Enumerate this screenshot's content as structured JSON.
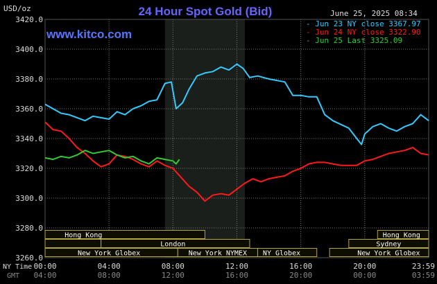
{
  "chart_data": {
    "type": "line",
    "title": "24 Hour Spot Gold (Bid)",
    "y_unit_label": "USD/oz",
    "timestamp": "June 25, 2025 08:34",
    "website": "www.kitco.com",
    "ylim": [
      3260,
      3420
    ],
    "y_ticks": [
      "3420.0",
      "3400.0",
      "3380.0",
      "3360.0",
      "3340.0",
      "3320.0",
      "3300.0",
      "3280.0",
      "3260.0"
    ],
    "y_tick_values": [
      3420,
      3400,
      3380,
      3360,
      3340,
      3320,
      3300,
      3280,
      3260
    ],
    "x_row_labels": {
      "ny": "NY Time",
      "gmt": "GMT"
    },
    "x_ticks": [
      {
        "h": 0,
        "ny": "00:00",
        "gmt": "04:00"
      },
      {
        "h": 4,
        "ny": "04:00",
        "gmt": "08:00"
      },
      {
        "h": 8,
        "ny": "08:00",
        "gmt": "12:00"
      },
      {
        "h": 12,
        "ny": "12:00",
        "gmt": "16:00"
      },
      {
        "h": 16,
        "ny": "16:00",
        "gmt": "20:00"
      },
      {
        "h": 20,
        "ny": "20:00",
        "gmt": "00:00"
      },
      {
        "h": 24,
        "ny": "23:59",
        "gmt": "03:59"
      }
    ],
    "shaded_session_hours": [
      7.5,
      12.5
    ],
    "legend_position": "top-right",
    "series": [
      {
        "name": "Jun 23 NY close 3367.97",
        "color": "#33ccff",
        "x": [
          0,
          0.5,
          1,
          1.5,
          2,
          2.5,
          3,
          3.5,
          4,
          4.5,
          5,
          5.5,
          6,
          6.5,
          7,
          7.5,
          7.9,
          8.2,
          8.6,
          9,
          9.5,
          10,
          10.5,
          11,
          11.5,
          12,
          12.4,
          12.8,
          13.3,
          14,
          15,
          15.5,
          16,
          16.5,
          17,
          17.5,
          18,
          18.6,
          19,
          19.5,
          19.8,
          20,
          20.5,
          21,
          21.5,
          22,
          22.5,
          23,
          23.5,
          24
        ],
        "y": [
          3363,
          3360,
          3357,
          3356,
          3354,
          3352,
          3355,
          3354,
          3353,
          3358,
          3356,
          3360,
          3362,
          3365,
          3366,
          3377,
          3378,
          3360,
          3364,
          3373,
          3382,
          3384,
          3385,
          3388,
          3386,
          3390,
          3387,
          3381,
          3382,
          3380,
          3378,
          3369,
          3369,
          3368,
          3368,
          3356,
          3352,
          3349,
          3347,
          3340,
          3336,
          3343,
          3348,
          3350,
          3347,
          3345,
          3348,
          3350,
          3356,
          3352
        ]
      },
      {
        "name": "Jun 24 NY close 3322.90",
        "color": "#ff1a1a",
        "x": [
          0,
          0.5,
          1,
          1.5,
          2,
          2.5,
          3,
          3.5,
          4,
          4.5,
          5,
          5.5,
          6,
          6.5,
          7,
          7.5,
          8,
          8.5,
          9,
          9.5,
          10,
          10.5,
          11,
          11.5,
          12,
          12.5,
          13,
          13.5,
          14,
          14.5,
          15,
          15.5,
          16,
          16.5,
          17,
          17.5,
          18,
          18.5,
          19,
          19.5,
          20,
          20.5,
          21,
          21.5,
          22,
          22.5,
          23,
          23.5,
          24
        ],
        "y": [
          3351,
          3346,
          3345,
          3340,
          3334,
          3330,
          3325,
          3321,
          3323,
          3329,
          3328,
          3326,
          3323,
          3321,
          3325,
          3322,
          3320,
          3314,
          3308,
          3304,
          3298,
          3302,
          3303,
          3302,
          3306,
          3310,
          3313,
          3311,
          3313,
          3314,
          3315,
          3318,
          3320,
          3323,
          3324,
          3324,
          3323,
          3322,
          3322,
          3322,
          3325,
          3326,
          3328,
          3330,
          3331,
          3332,
          3334,
          3330,
          3329
        ]
      },
      {
        "name": "Jun 25 Last 3325.09",
        "color": "#33cc33",
        "x": [
          0,
          0.5,
          1,
          1.5,
          2,
          2.5,
          3,
          3.5,
          4,
          4.5,
          5,
          5.5,
          6,
          6.5,
          7,
          7.5,
          8,
          8.2,
          8.4
        ],
        "y": [
          3327,
          3326,
          3328,
          3327,
          3329,
          3332,
          3330,
          3331,
          3332,
          3329,
          3327,
          3328,
          3325,
          3323,
          3327,
          3326,
          3325,
          3323,
          3326
        ]
      }
    ]
  },
  "market_sessions": [
    {
      "label": "Hong Kong",
      "start": 0,
      "end": 10,
      "row": 1,
      "label_at": 2.4
    },
    {
      "label": "Hong Kong",
      "start": 20.8,
      "end": 24,
      "row": 1,
      "label_at": 22.3
    },
    {
      "label": "London",
      "start": 0,
      "end": 3.5,
      "row": 2,
      "label_at": null
    },
    {
      "label": "London",
      "start": 3.5,
      "end": 12.8,
      "row": 2,
      "label_at": 8.0
    },
    {
      "label": "Sydney",
      "start": 19,
      "end": 24,
      "row": 2,
      "label_at": 21.5
    },
    {
      "label": "New York Globex",
      "start": 0,
      "end": 8.3,
      "row": 3,
      "label_at": 4.0
    },
    {
      "label": "New York NYMEX",
      "start": 8.3,
      "end": 13.3,
      "row": 3,
      "label_at": 10.8
    },
    {
      "label": "NY Globex",
      "start": 13.3,
      "end": 17,
      "row": 3,
      "label_at": 14.8
    },
    {
      "label": "New York Globex",
      "start": 17.8,
      "end": 24,
      "row": 3,
      "label_at": 21.5
    }
  ],
  "colors": {
    "background": "#000000",
    "title": "#6666ff",
    "website": "#5577ff",
    "grid": "#7a7a7a",
    "session_fill": "#0d0d00",
    "session_stroke": "#b5a642",
    "shade": "#1b1f1b",
    "axis_text": "#dddddd",
    "gmt_text": "#8a8a8a"
  }
}
